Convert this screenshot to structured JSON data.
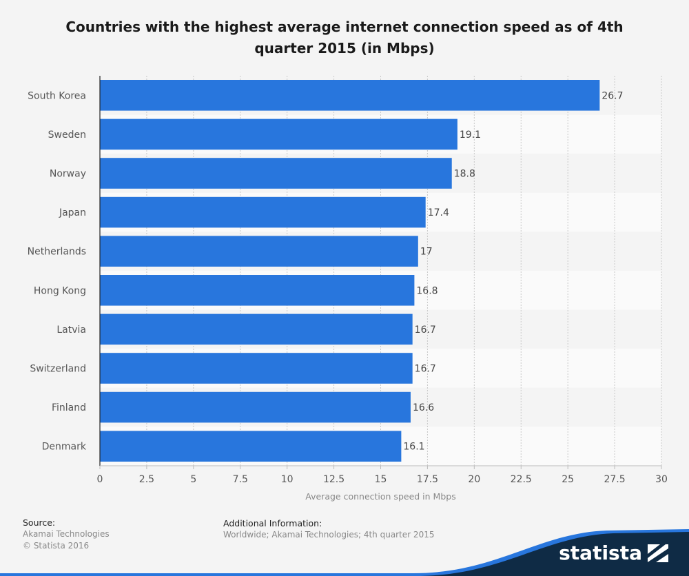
{
  "chart_data": {
    "type": "bar",
    "orientation": "horizontal",
    "title": "Countries with the highest average internet connection speed as of 4th quarter 2015 (in Mbps)",
    "xlabel": "Average connection speed in Mbps",
    "ylabel": "",
    "xlim": [
      0,
      30
    ],
    "xticks": [
      "0",
      "2.5",
      "5",
      "7.5",
      "10",
      "12.5",
      "15",
      "17.5",
      "20",
      "22.5",
      "25",
      "27.5",
      "30"
    ],
    "categories": [
      "South Korea",
      "Sweden",
      "Norway",
      "Japan",
      "Netherlands",
      "Hong Kong",
      "Latvia",
      "Switzerland",
      "Finland",
      "Denmark"
    ],
    "values": [
      26.7,
      19.1,
      18.8,
      17.4,
      17,
      16.8,
      16.7,
      16.7,
      16.6,
      16.1
    ],
    "value_labels": [
      "26.7",
      "19.1",
      "18.8",
      "17.4",
      "17",
      "16.8",
      "16.7",
      "16.7",
      "16.6",
      "16.1"
    ],
    "bar_color": "#2876dd",
    "grid": true
  },
  "footer": {
    "source_heading": "Source:",
    "source_lines": [
      "Akamai Technologies",
      "© Statista 2016"
    ],
    "info_heading": "Additional Information:",
    "info_text": "Worldwide; Akamai Technologies; 4th quarter 2015"
  },
  "brand": {
    "name": "statista",
    "icon": "statista-logo-icon",
    "color": "#0f2b45"
  }
}
